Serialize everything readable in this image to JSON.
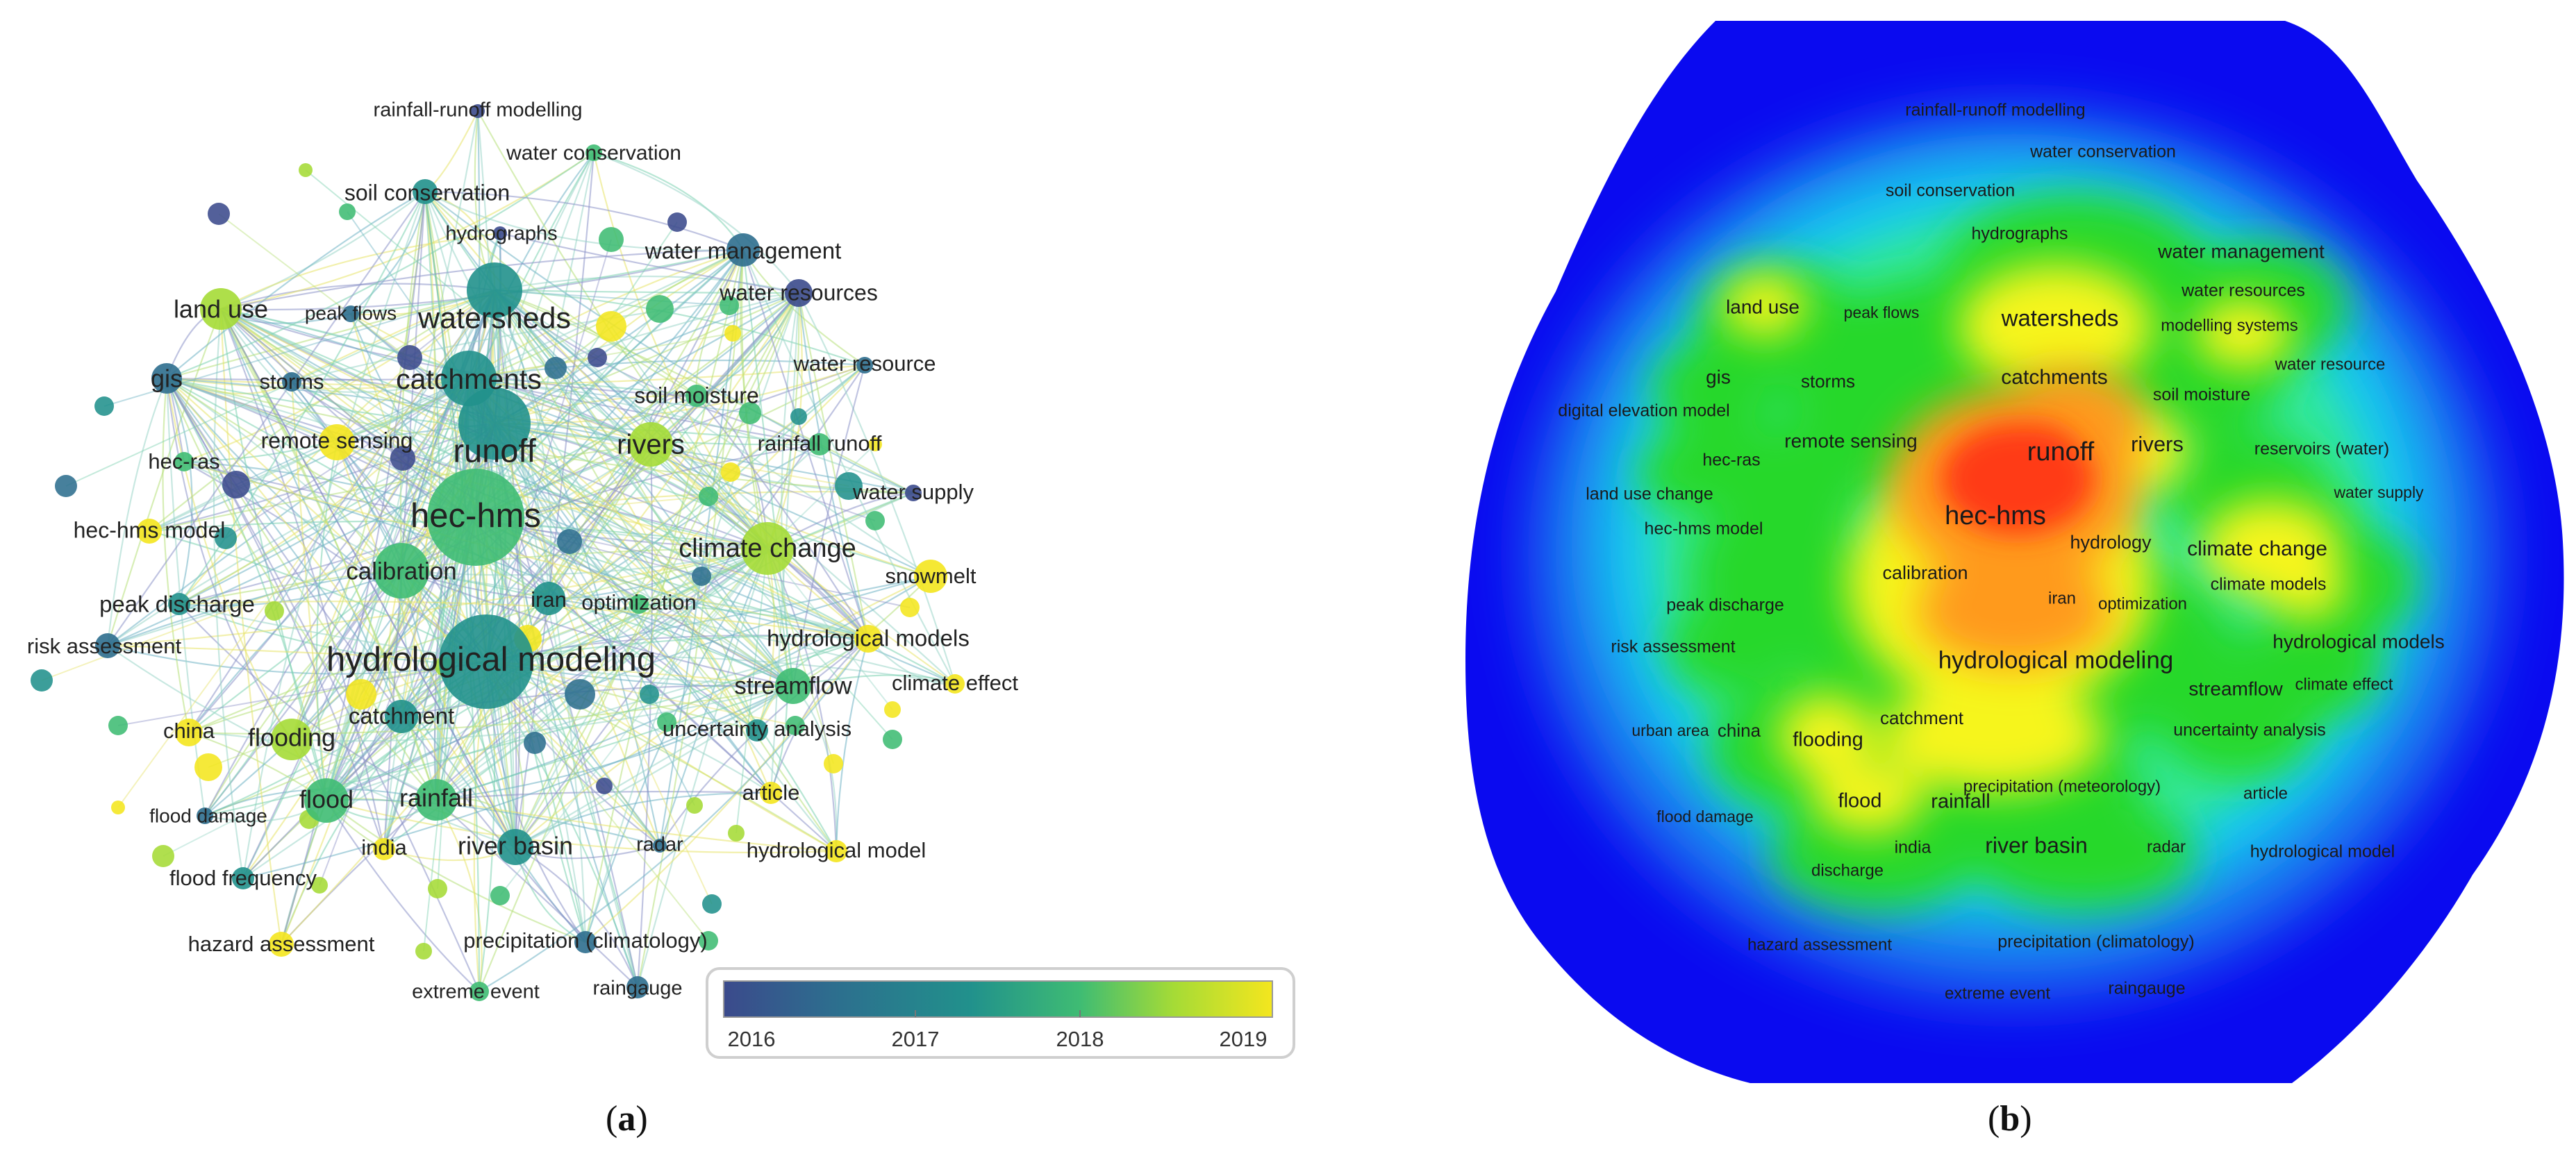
{
  "panel_a": {
    "caption_letter": "a",
    "legend": {
      "ticks": [
        "2016",
        "2017",
        "2018",
        "2019"
      ],
      "colors": [
        "#3b4a8c",
        "#2d6e8e",
        "#21918c",
        "#3fbc73",
        "#a5db36",
        "#f4e61e"
      ]
    },
    "nodes": [
      {
        "label": "rainfall-runoff modelling"
      },
      {
        "label": "water conservation"
      },
      {
        "label": "soil conservation"
      },
      {
        "label": "hydrographs"
      },
      {
        "label": "water management"
      },
      {
        "label": "land use"
      },
      {
        "label": "peak flows"
      },
      {
        "label": "watersheds"
      },
      {
        "label": "water resources"
      },
      {
        "label": "gis"
      },
      {
        "label": "storms"
      },
      {
        "label": "catchments"
      },
      {
        "label": "soil moisture"
      },
      {
        "label": "water resource"
      },
      {
        "label": "runoff"
      },
      {
        "label": "remote sensing"
      },
      {
        "label": "rivers"
      },
      {
        "label": "rainfall runoff"
      },
      {
        "label": "hec-ras"
      },
      {
        "label": "water supply"
      },
      {
        "label": "hec-hms"
      },
      {
        "label": "hec-hms model"
      },
      {
        "label": "climate change"
      },
      {
        "label": "calibration"
      },
      {
        "label": "snowmelt"
      },
      {
        "label": "peak discharge"
      },
      {
        "label": "iran"
      },
      {
        "label": "optimization"
      },
      {
        "label": "hydrological models"
      },
      {
        "label": "risk assessment"
      },
      {
        "label": "hydrological modeling"
      },
      {
        "label": "climate effect"
      },
      {
        "label": "streamflow"
      },
      {
        "label": "catchment"
      },
      {
        "label": "china"
      },
      {
        "label": "flooding"
      },
      {
        "label": "uncertainty analysis"
      },
      {
        "label": "flood"
      },
      {
        "label": "rainfall"
      },
      {
        "label": "article"
      },
      {
        "label": "flood damage"
      },
      {
        "label": "india"
      },
      {
        "label": "river basin"
      },
      {
        "label": "radar"
      },
      {
        "label": "hydrological model"
      },
      {
        "label": "flood frequency"
      },
      {
        "label": "hazard assessment"
      },
      {
        "label": "precipitation (climatology)"
      },
      {
        "label": "extreme event"
      },
      {
        "label": "raingauge"
      }
    ]
  },
  "panel_b": {
    "caption_letter": "b",
    "labels": [
      {
        "label": "rainfall-runoff modelling"
      },
      {
        "label": "water conservation"
      },
      {
        "label": "soil conservation"
      },
      {
        "label": "hydrographs"
      },
      {
        "label": "water management"
      },
      {
        "label": "water resources"
      },
      {
        "label": "land use"
      },
      {
        "label": "peak flows"
      },
      {
        "label": "watersheds"
      },
      {
        "label": "modelling systems"
      },
      {
        "label": "water resource"
      },
      {
        "label": "gis"
      },
      {
        "label": "storms"
      },
      {
        "label": "catchments"
      },
      {
        "label": "soil moisture"
      },
      {
        "label": "digital elevation model"
      },
      {
        "label": "remote sensing"
      },
      {
        "label": "runoff"
      },
      {
        "label": "rivers"
      },
      {
        "label": "reservoirs (water)"
      },
      {
        "label": "hec-ras"
      },
      {
        "label": "land use change"
      },
      {
        "label": "water supply"
      },
      {
        "label": "hec-hms"
      },
      {
        "label": "hec-hms model"
      },
      {
        "label": "hydrology"
      },
      {
        "label": "climate change"
      },
      {
        "label": "calibration"
      },
      {
        "label": "climate models"
      },
      {
        "label": "peak discharge"
      },
      {
        "label": "iran"
      },
      {
        "label": "optimization"
      },
      {
        "label": "risk assessment"
      },
      {
        "label": "hydrological models"
      },
      {
        "label": "hydrological modeling"
      },
      {
        "label": "streamflow"
      },
      {
        "label": "climate effect"
      },
      {
        "label": "catchment"
      },
      {
        "label": "urban area"
      },
      {
        "label": "china"
      },
      {
        "label": "flooding"
      },
      {
        "label": "uncertainty analysis"
      },
      {
        "label": "precipitation (meteorology)"
      },
      {
        "label": "article"
      },
      {
        "label": "flood damage"
      },
      {
        "label": "flood"
      },
      {
        "label": "rainfall"
      },
      {
        "label": "india"
      },
      {
        "label": "river basin"
      },
      {
        "label": "radar"
      },
      {
        "label": "hydrological model"
      },
      {
        "label": "discharge"
      },
      {
        "label": "hazard assessment"
      },
      {
        "label": "precipitation (climatology)"
      },
      {
        "label": "extreme event"
      },
      {
        "label": "raingauge"
      }
    ]
  }
}
